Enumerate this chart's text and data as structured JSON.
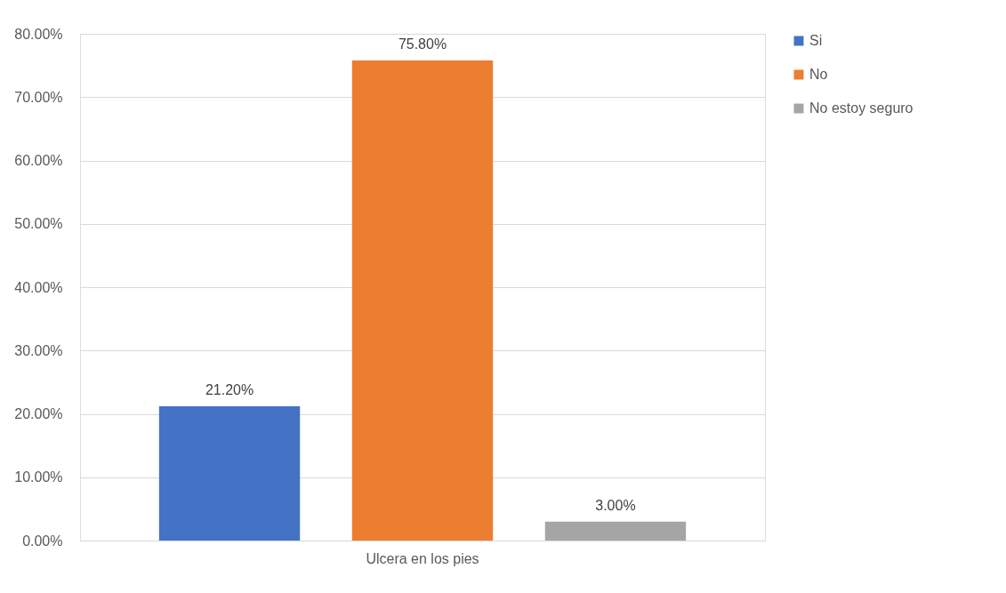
{
  "chart_data": {
    "type": "bar",
    "categories": [
      "Ulcera en los pies"
    ],
    "series": [
      {
        "name": "Si",
        "color": "#4472c4",
        "values": [
          21.2
        ],
        "value_labels": [
          "21.20%"
        ]
      },
      {
        "name": "No",
        "color": "#ed7d31",
        "values": [
          75.8
        ],
        "value_labels": [
          "75.80%"
        ]
      },
      {
        "name": "No estoy seguro",
        "color": "#a5a5a5",
        "values": [
          3.0
        ],
        "value_labels": [
          "3.00%"
        ]
      }
    ],
    "ylim": [
      0,
      80
    ],
    "yticks": [
      {
        "value": 0,
        "label": "0.00%"
      },
      {
        "value": 10,
        "label": "10.00%"
      },
      {
        "value": 20,
        "label": "20.00%"
      },
      {
        "value": 30,
        "label": "30.00%"
      },
      {
        "value": 40,
        "label": "40.00%"
      },
      {
        "value": 50,
        "label": "50.00%"
      },
      {
        "value": 60,
        "label": "60.00%"
      },
      {
        "value": 70,
        "label": "70.00%"
      },
      {
        "value": 80,
        "label": "80.00%"
      }
    ],
    "grid": "y",
    "legend": "right"
  }
}
